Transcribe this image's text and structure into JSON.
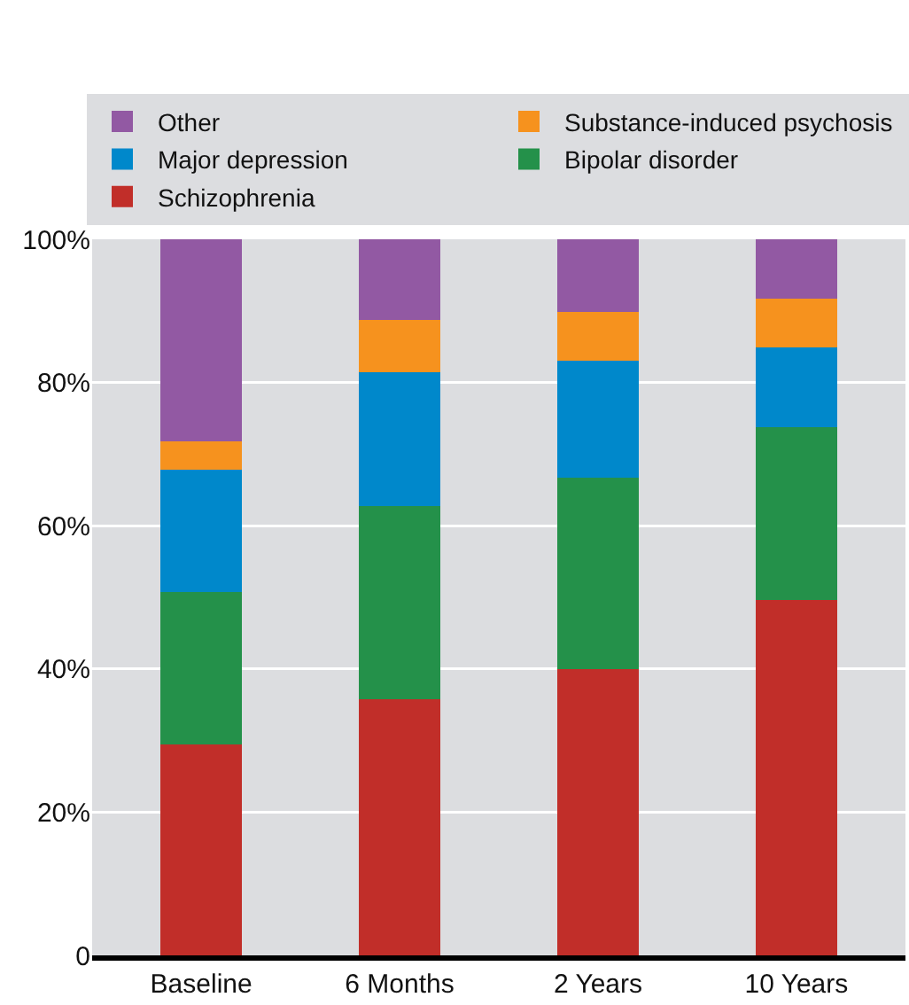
{
  "chart_data": {
    "type": "bar",
    "stacked": true,
    "categories": [
      "Baseline",
      "6 Months",
      "2 Years",
      "10 Years"
    ],
    "series": [
      {
        "name": "Schizophrenia",
        "color": "#c12e29",
        "values": [
          29.5,
          35.8,
          40.0,
          49.6
        ]
      },
      {
        "name": "Bipolar disorder",
        "color": "#24914a",
        "values": [
          21.2,
          26.9,
          26.7,
          24.2
        ]
      },
      {
        "name": "Major depression",
        "color": "#0088cb",
        "values": [
          17.1,
          18.7,
          16.4,
          11.1
        ]
      },
      {
        "name": "Substance-induced psychosis",
        "color": "#f6921e",
        "values": [
          4.0,
          7.3,
          6.8,
          6.8
        ]
      },
      {
        "name": "Other",
        "color": "#9259a3",
        "values": [
          28.2,
          11.3,
          10.1,
          8.3
        ]
      }
    ],
    "ylim": [
      0,
      100
    ],
    "yticks": [
      {
        "value": 0,
        "label": "0"
      },
      {
        "value": 20,
        "label": "20%"
      },
      {
        "value": 40,
        "label": "40%"
      },
      {
        "value": 60,
        "label": "60%"
      },
      {
        "value": 80,
        "label": "80%"
      },
      {
        "value": 100,
        "label": "100%"
      }
    ],
    "grid": "y",
    "legend": "top"
  }
}
